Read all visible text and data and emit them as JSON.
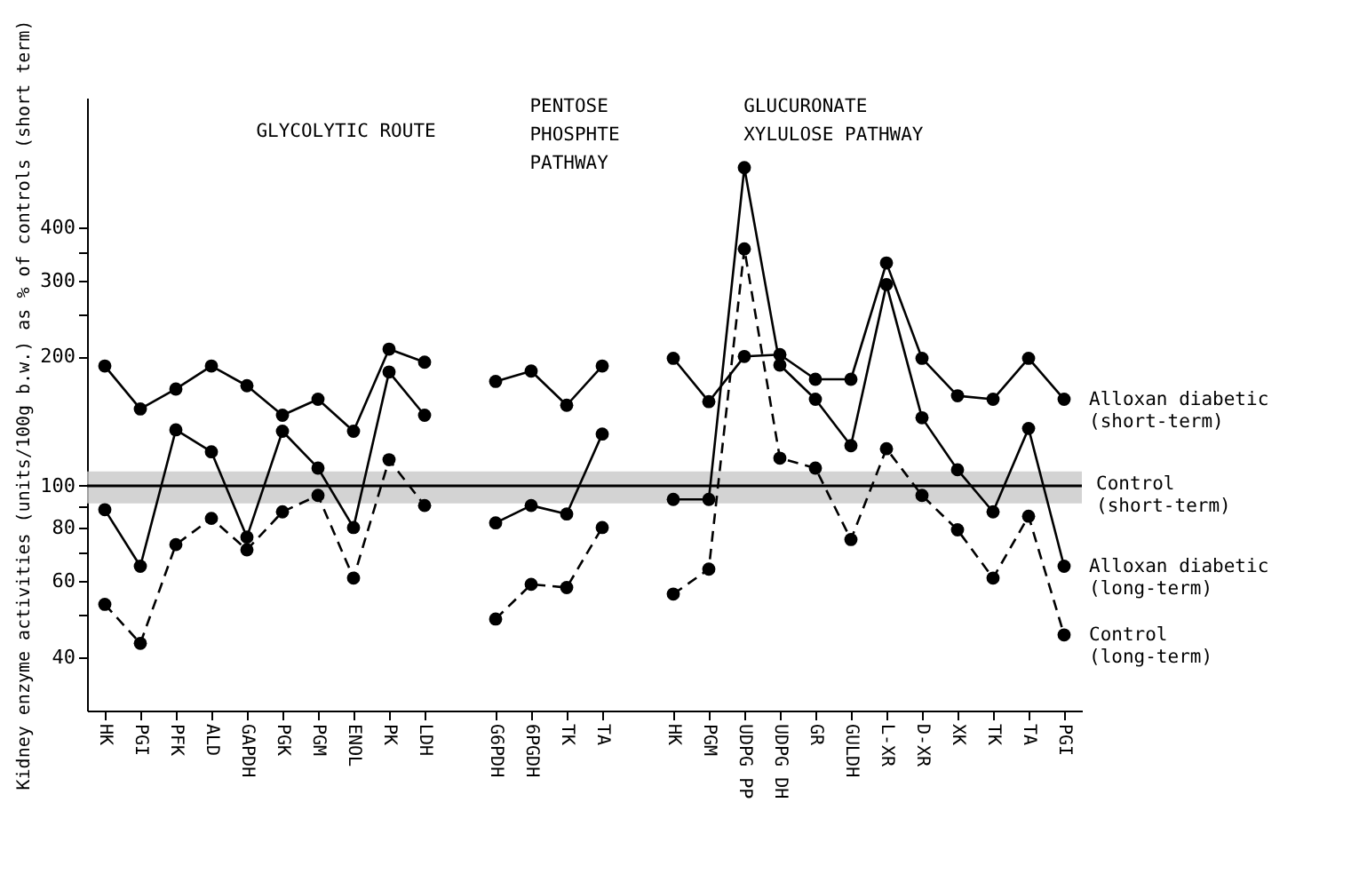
{
  "chart_data": {
    "type": "line",
    "ylabel": "Kidney enzyme activities (units/100g b.w.) as % of controls (short term)",
    "annotations": [
      "GLYCOLYTIC ROUTE",
      "PENTOSE\nPHOSPHTE\nPATHWAY",
      "GLUCURONATE\nXYLULOSE PATHWAY"
    ],
    "categories": [
      "HK",
      "PGI",
      "PFK",
      "ALD",
      "GAPDH",
      "PGK",
      "PGM",
      "ENOL",
      "PK",
      "LDH",
      null,
      "G6PDH",
      "6PGDH",
      "TK",
      "TA",
      null,
      "HK",
      "PGM",
      "UDPG PP",
      "UDPG DH",
      "GR",
      "GULDH",
      "L-XR",
      "D-XR",
      "XK",
      "TK",
      "TA",
      "PGI"
    ],
    "series": [
      {
        "name": "Alloxan diabetic\n(short-term)",
        "color": "#000000",
        "line_style": "solid",
        "values": [
          190,
          151,
          168,
          190,
          171,
          146,
          159,
          134,
          208,
          194,
          null,
          175,
          185,
          154,
          190,
          null,
          198,
          157,
          200,
          202,
          177,
          177,
          330,
          198,
          162,
          159,
          198,
          159
        ]
      },
      {
        "name": "Alloxan diabetic\n(long-term)",
        "color": "#000000",
        "line_style": "solid",
        "values": [
          88,
          65,
          135,
          120,
          76,
          134,
          110,
          80,
          184,
          146,
          null,
          82,
          90,
          86,
          132,
          null,
          93,
          93,
          550,
          191,
          159,
          124,
          294,
          144,
          109,
          87,
          136,
          65
        ]
      },
      {
        "name": "Control\n(long-term)",
        "color": "#000000",
        "line_style": "dashed",
        "values": [
          53,
          43,
          73,
          84,
          71,
          87,
          95,
          61,
          115,
          90,
          null,
          49,
          59,
          58,
          80,
          null,
          56,
          64,
          356,
          116,
          110,
          75,
          122,
          95,
          79,
          61,
          85,
          45
        ]
      }
    ],
    "ref_lines": [
      {
        "axis": "y",
        "value": 100,
        "label": "Control\n(short-term)",
        "color": "#000000"
      }
    ],
    "bands": [
      {
        "axis": "y",
        "from": 91,
        "to": 108,
        "color": "#c8c8c8"
      }
    ],
    "log": "y",
    "ylim": [
      30,
      800
    ],
    "yticks": [
      40,
      {
        "value": 50,
        "label": null
      },
      60,
      {
        "value": 70,
        "label": null
      },
      80,
      {
        "value": 90,
        "label": null
      },
      100,
      200,
      {
        "value": 250,
        "label": null
      },
      300,
      {
        "value": 350,
        "label": null
      },
      400
    ],
    "marker": "circle",
    "grid": false
  }
}
